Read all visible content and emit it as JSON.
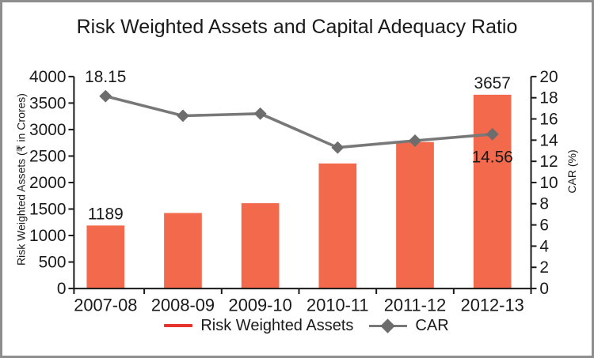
{
  "title": "Risk Weighted Assets and Capital Adequacy Ratio",
  "chart_data": {
    "type": "combo-bar-line",
    "categories": [
      "2007-08",
      "2008-09",
      "2009-10",
      "2010-11",
      "2011-12",
      "2012-13"
    ],
    "series": [
      {
        "name": "Risk Weighted Assets",
        "type": "bar",
        "axis": "left",
        "color": "#F2694B",
        "values": [
          1189,
          1425,
          1610,
          2360,
          2765,
          3657
        ]
      },
      {
        "name": "CAR",
        "type": "line",
        "axis": "right",
        "color": "#787878",
        "marker": "diamond",
        "marker_color": "#6D6D6D",
        "values": [
          18.15,
          16.3,
          16.5,
          13.3,
          13.95,
          14.56
        ]
      }
    ],
    "left_axis": {
      "label": "Risk Weighted Assets (₹ in Crores)",
      "min": 0,
      "max": 4000,
      "step": 500,
      "tick_labels": [
        "0",
        "500",
        "1000",
        "1500",
        "2000",
        "2500",
        "3000",
        "3500",
        "4000"
      ]
    },
    "right_axis": {
      "label": "CAR (%)",
      "min": 0,
      "max": 20,
      "step": 2,
      "tick_labels": [
        "0",
        "2",
        "4",
        "6",
        "8",
        "10",
        "12",
        "14",
        "16",
        "18",
        "20"
      ]
    },
    "annotations": [
      {
        "series": "CAR",
        "index": 0,
        "text": "18.15",
        "placement": "above"
      },
      {
        "series": "Risk Weighted Assets",
        "index": 0,
        "text": "1189",
        "placement": "above"
      },
      {
        "series": "Risk Weighted Assets",
        "index": 5,
        "text": "3657",
        "placement": "above"
      },
      {
        "series": "CAR",
        "index": 5,
        "text": "14.56",
        "placement": "below"
      }
    ],
    "legend": [
      {
        "label": "Risk Weighted Assets",
        "marker": "line",
        "color": "#E5322D"
      },
      {
        "label": "CAR",
        "marker": "diamond-line",
        "color": "#6D6D6D",
        "line_color": "#787878"
      }
    ],
    "grid": false,
    "legend_position": "bottom",
    "axis_color": "#1A1A1A",
    "text_color": "#1A1A1A"
  }
}
